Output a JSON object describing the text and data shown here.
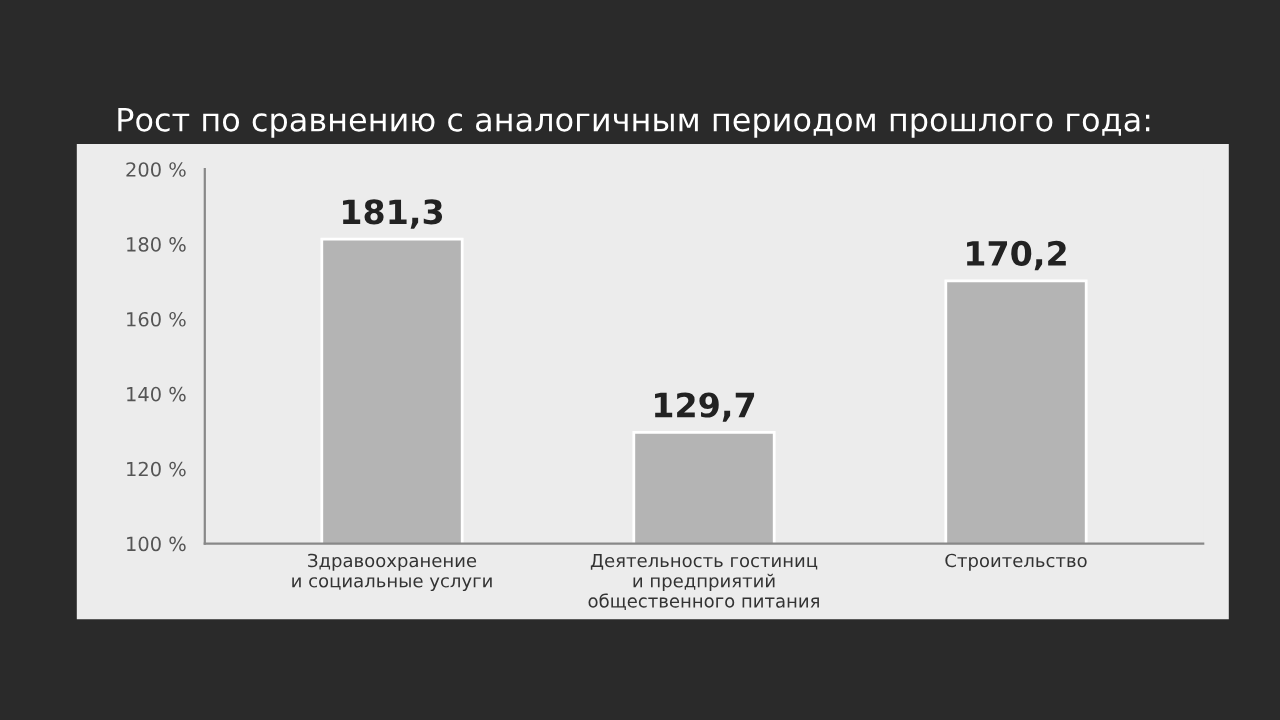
{
  "chart_data": {
    "type": "bar",
    "title": "Рост по сравнению с аналогичным периодом прошлого года:",
    "categories": [
      "Здравоохранение\nи социальные услуги",
      "Деятельность гостиниц\nи предприятий\nобщественного питания",
      "Строительство"
    ],
    "values": [
      181.3,
      129.7,
      170.2
    ],
    "value_labels": [
      "181,3",
      "129,7",
      "170,2"
    ],
    "color": "#b4b4b4",
    "ylim": [
      100,
      200
    ],
    "yticks": [
      {
        "value": 100,
        "label": "100 %"
      },
      {
        "value": 120,
        "label": "120 %"
      },
      {
        "value": 140,
        "label": "140 %"
      },
      {
        "value": 160,
        "label": "160 %"
      },
      {
        "value": 180,
        "label": "180 %"
      },
      {
        "value": 200,
        "label": "200 %"
      }
    ],
    "grid": false
  }
}
